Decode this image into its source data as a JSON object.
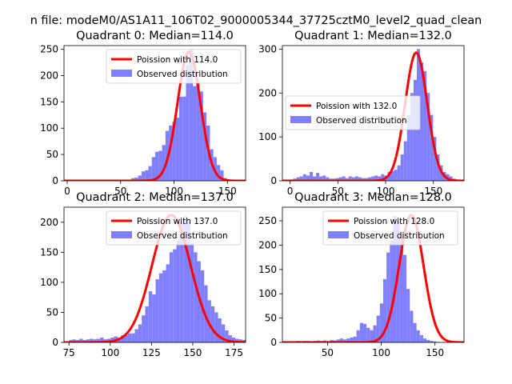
{
  "figure": {
    "suptitle": "n file: modeM0/AS1A11_106T02_9000005344_37725cztM0_level2_quad_clean"
  },
  "chart_data": [
    {
      "type": "histogram",
      "title": "Quadrant 0: Median=114.0",
      "xlim": [
        -3,
        167
      ],
      "ylim": [
        0,
        257
      ],
      "xticks": [
        0,
        50,
        100,
        150
      ],
      "yticks": [
        0,
        50,
        100,
        150,
        200,
        250
      ],
      "legend": {
        "placement": "upper-right",
        "entries": [
          "Poission with 114.0",
          "Observed distribution"
        ]
      },
      "poisson": {
        "name": "Poission with 114.0",
        "mean": 114.0,
        "peak": 245,
        "sigma": 10.7,
        "color": "#ff0000"
      },
      "hist": {
        "name": "Observed distribution",
        "color": "#8080ff",
        "bin_start": 60,
        "bin_width": 3.2,
        "counts": [
          5,
          6,
          10,
          18,
          20,
          28,
          45,
          55,
          57,
          68,
          95,
          105,
          112,
          120,
          160,
          160,
          220,
          250,
          180,
          190,
          170,
          130,
          105,
          60,
          45,
          30,
          20,
          5
        ]
      }
    },
    {
      "type": "histogram",
      "title": "Quadrant 1: Median=132.0",
      "xlim": [
        -8,
        182
      ],
      "ylim": [
        0,
        308
      ],
      "xticks": [
        0,
        50,
        100,
        150
      ],
      "yticks": [
        0,
        100,
        200,
        300
      ],
      "legend": {
        "placement": "center-left",
        "entries": [
          "Poission with 132.0",
          "Observed distribution"
        ]
      },
      "poisson": {
        "name": "Poission with 132.0",
        "mean": 132.0,
        "peak": 292,
        "sigma": 11.5,
        "color": "#ff0000"
      },
      "hist": {
        "name": "Observed distribution",
        "color": "#8080ff",
        "bin_start": 0,
        "bin_width": 3.4,
        "counts": [
          3,
          5,
          8,
          10,
          15,
          12,
          20,
          10,
          18,
          10,
          12,
          8,
          5,
          5,
          6,
          8,
          10,
          6,
          10,
          8,
          10,
          8,
          6,
          6,
          8,
          10,
          12,
          10,
          15,
          12,
          20,
          22,
          25,
          35,
          60,
          90,
          150,
          200,
          230,
          300,
          270,
          250,
          200,
          150,
          100,
          60,
          35,
          20,
          15,
          10,
          5
        ]
      }
    },
    {
      "type": "histogram",
      "title": "Quadrant 2: Median=137.0",
      "xlim": [
        72,
        182
      ],
      "ylim": [
        0,
        225
      ],
      "xticks": [
        75,
        100,
        125,
        150,
        175
      ],
      "yticks": [
        0,
        50,
        100,
        150,
        200
      ],
      "legend": {
        "placement": "upper-right",
        "entries": [
          "Poission with 137.0",
          "Observed distribution"
        ]
      },
      "poisson": {
        "name": "Poission with 137.0",
        "mean": 137.0,
        "peak": 212,
        "sigma": 11.7,
        "color": "#ff0000"
      },
      "hist": {
        "name": "Observed distribution",
        "color": "#8080ff",
        "bin_start": 75,
        "bin_width": 2.1,
        "counts": [
          4,
          5,
          4,
          6,
          4,
          5,
          6,
          5,
          6,
          8,
          5,
          6,
          8,
          10,
          8,
          12,
          12,
          15,
          15,
          22,
          30,
          45,
          60,
          85,
          80,
          105,
          115,
          120,
          130,
          150,
          155,
          170,
          200,
          210,
          200,
          165,
          150,
          135,
          120,
          95,
          70,
          60,
          50,
          40,
          30,
          20,
          12,
          8,
          6,
          5,
          4
        ]
      }
    },
    {
      "type": "histogram",
      "title": "Quadrant 3: Median=128.0",
      "xlim": [
        8,
        177
      ],
      "ylim": [
        0,
        278
      ],
      "xticks": [
        50,
        100,
        150
      ],
      "yticks": [
        0,
        50,
        100,
        150,
        200,
        250
      ],
      "legend": {
        "placement": "upper-right",
        "entries": [
          "Poission with 128.0",
          "Observed distribution"
        ]
      },
      "poisson": {
        "name": "Poission with 128.0",
        "mean": 128.0,
        "peak": 262,
        "sigma": 11.3,
        "color": "#ff0000"
      },
      "hist": {
        "name": "Observed distribution",
        "color": "#8080ff",
        "bin_start": 15,
        "bin_width": 3.1,
        "counts": [
          2,
          2,
          3,
          2,
          3,
          3,
          2,
          3,
          4,
          3,
          4,
          3,
          5,
          4,
          6,
          8,
          6,
          8,
          10,
          12,
          25,
          40,
          38,
          30,
          25,
          35,
          55,
          80,
          130,
          185,
          210,
          260,
          250,
          215,
          180,
          110,
          65,
          40,
          25,
          15,
          8,
          5,
          3,
          2,
          1
        ]
      }
    }
  ]
}
